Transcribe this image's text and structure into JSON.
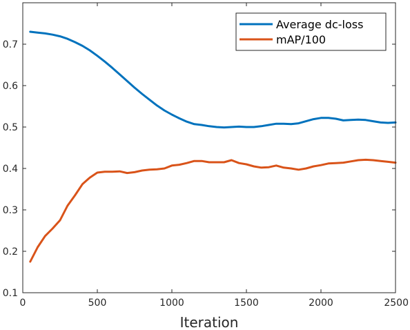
{
  "chart_data": {
    "type": "line",
    "title": "",
    "xlabel": "Iteration",
    "ylabel": "",
    "xlim": [
      0,
      2500
    ],
    "ylim": [
      0.1,
      0.8
    ],
    "xticks": [
      0,
      500,
      1000,
      1500,
      2000,
      2500
    ],
    "yticks": [
      0.1,
      0.2,
      0.3,
      0.4,
      0.5,
      0.6,
      0.7
    ],
    "xtick_labels": [
      "0",
      "500",
      "1000",
      "1500",
      "2000",
      "2500"
    ],
    "ytick_labels": [
      "0.1",
      "0.2",
      "0.3",
      "0.4",
      "0.5",
      "0.6",
      "0.7"
    ],
    "grid": false,
    "legend_position": "top-right",
    "series": [
      {
        "name": "Average dc-loss",
        "color": "#0072bd",
        "x": [
          50,
          100,
          150,
          200,
          250,
          300,
          350,
          400,
          450,
          500,
          550,
          600,
          650,
          700,
          750,
          800,
          850,
          900,
          950,
          1000,
          1050,
          1100,
          1150,
          1200,
          1250,
          1300,
          1350,
          1400,
          1450,
          1500,
          1550,
          1600,
          1650,
          1700,
          1750,
          1800,
          1850,
          1900,
          1950,
          2000,
          2050,
          2100,
          2150,
          2200,
          2250,
          2300,
          2350,
          2400,
          2450,
          2500
        ],
        "values": [
          0.73,
          0.728,
          0.726,
          0.723,
          0.719,
          0.713,
          0.705,
          0.696,
          0.685,
          0.672,
          0.658,
          0.643,
          0.627,
          0.611,
          0.595,
          0.58,
          0.566,
          0.552,
          0.54,
          0.53,
          0.521,
          0.513,
          0.507,
          0.505,
          0.502,
          0.5,
          0.499,
          0.5,
          0.501,
          0.5,
          0.5,
          0.502,
          0.505,
          0.508,
          0.508,
          0.507,
          0.509,
          0.514,
          0.519,
          0.522,
          0.522,
          0.52,
          0.516,
          0.517,
          0.518,
          0.517,
          0.514,
          0.511,
          0.51,
          0.511
        ]
      },
      {
        "name": "mAP/100",
        "color": "#d95319",
        "x": [
          50,
          100,
          150,
          200,
          250,
          300,
          350,
          400,
          450,
          500,
          550,
          600,
          650,
          700,
          750,
          800,
          850,
          900,
          950,
          1000,
          1050,
          1100,
          1150,
          1200,
          1250,
          1300,
          1350,
          1400,
          1450,
          1500,
          1550,
          1600,
          1650,
          1700,
          1750,
          1800,
          1850,
          1900,
          1950,
          2000,
          2050,
          2100,
          2150,
          2200,
          2250,
          2300,
          2350,
          2400,
          2450,
          2500
        ],
        "values": [
          0.175,
          0.21,
          0.237,
          0.255,
          0.275,
          0.31,
          0.335,
          0.362,
          0.378,
          0.39,
          0.392,
          0.392,
          0.393,
          0.389,
          0.391,
          0.395,
          0.397,
          0.398,
          0.4,
          0.407,
          0.409,
          0.413,
          0.418,
          0.418,
          0.415,
          0.415,
          0.415,
          0.42,
          0.413,
          0.41,
          0.405,
          0.402,
          0.403,
          0.407,
          0.402,
          0.4,
          0.397,
          0.4,
          0.405,
          0.408,
          0.412,
          0.413,
          0.414,
          0.417,
          0.42,
          0.421,
          0.42,
          0.418,
          0.416,
          0.414
        ]
      }
    ]
  }
}
